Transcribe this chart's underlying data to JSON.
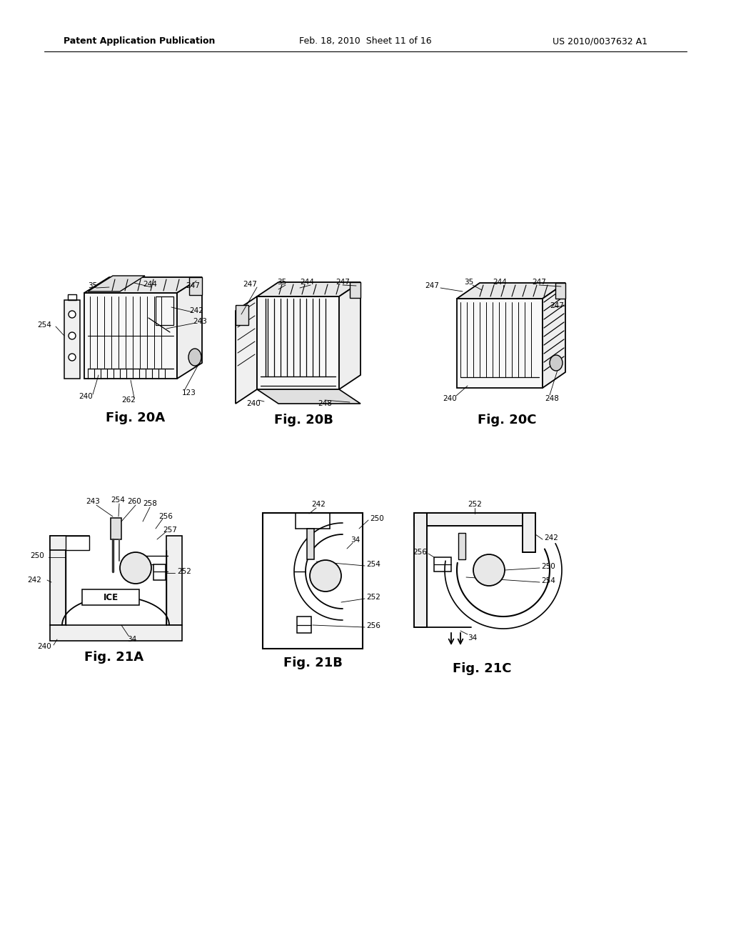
{
  "page_title_left": "Patent Application Publication",
  "page_title_mid": "Feb. 18, 2010  Sheet 11 of 16",
  "page_title_right": "US 2010/0037632 A1",
  "background_color": "#ffffff",
  "line_color": "#000000",
  "text_color": "#000000",
  "fig_label_fontsize": 13,
  "header_fontsize": 9,
  "ref_fontsize": 7.5
}
